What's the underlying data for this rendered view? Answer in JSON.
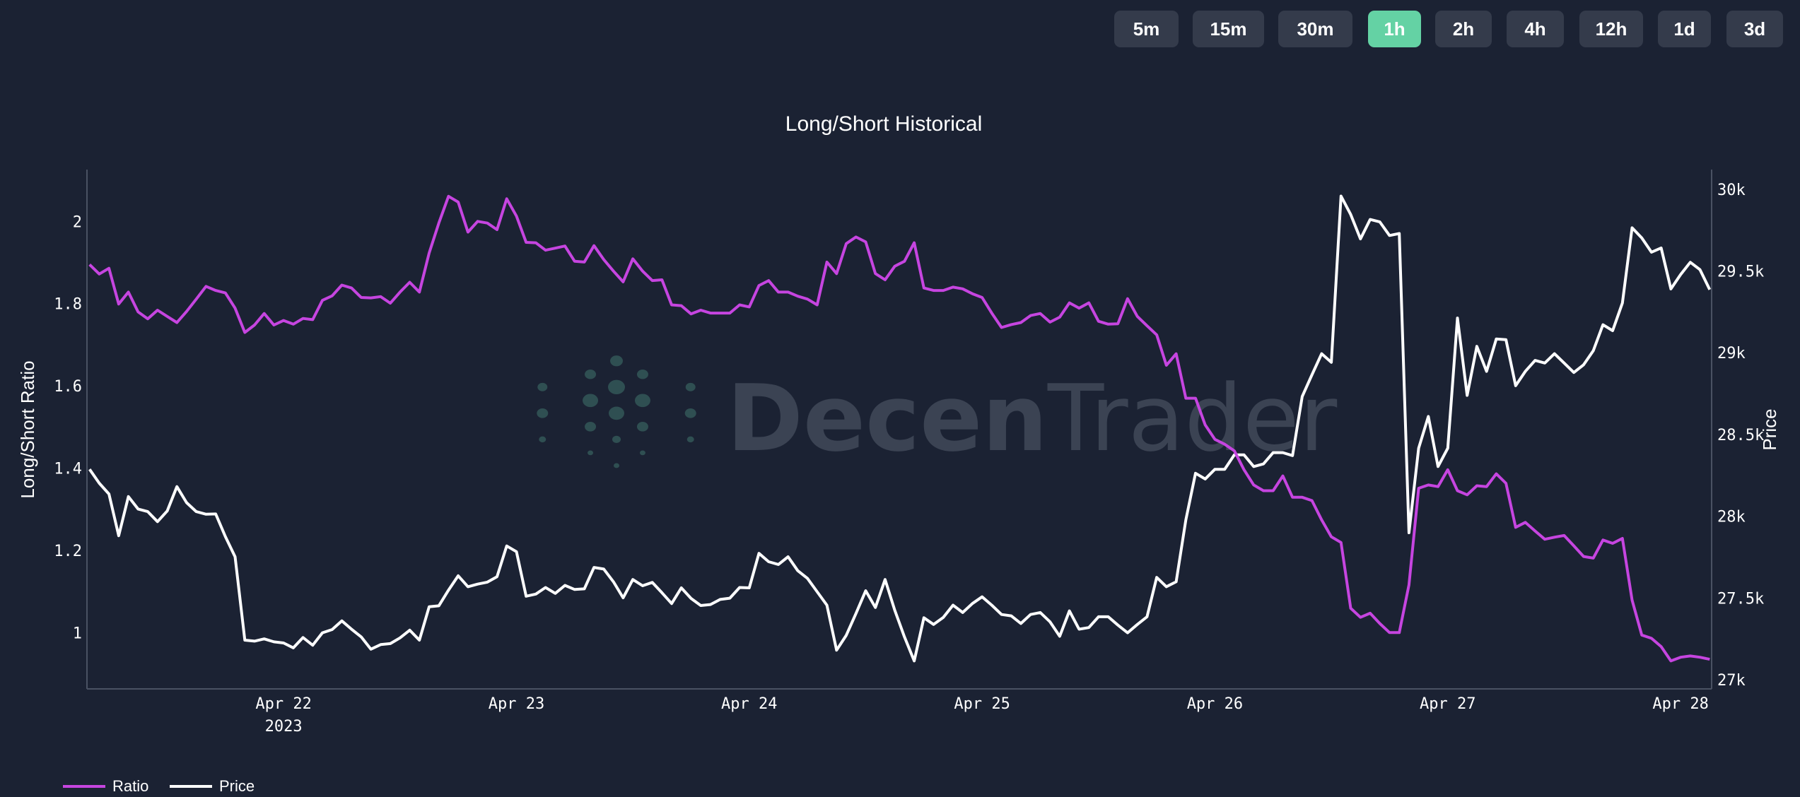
{
  "timeframes": {
    "options": [
      "5m",
      "15m",
      "30m",
      "1h",
      "2h",
      "4h",
      "12h",
      "1d",
      "3d"
    ],
    "selected": "1h"
  },
  "watermark": {
    "part1": "Decen",
    "part2": "Trader"
  },
  "colors": {
    "background": "#1b2233",
    "ratio": "#c645e0",
    "price": "#ffffff",
    "active_button": "#64d2a4",
    "button": "#343b4b"
  },
  "chart_data": {
    "type": "line",
    "title": "Long/Short Historical",
    "xlabel": "",
    "ylabel": "Long/Short Ratio",
    "y2label": "Price",
    "x_start": "2023-04-21T04:00",
    "interval_hours": 1,
    "x_ticks": [
      {
        "label": "Apr 22",
        "sub": "2023",
        "hour": 20
      },
      {
        "label": "Apr 23",
        "sub": "",
        "hour": 44
      },
      {
        "label": "Apr 24",
        "sub": "",
        "hour": 68
      },
      {
        "label": "Apr 25",
        "sub": "",
        "hour": 92
      },
      {
        "label": "Apr 26",
        "sub": "",
        "hour": 116
      },
      {
        "label": "Apr 27",
        "sub": "",
        "hour": 140
      },
      {
        "label": "Apr 28",
        "sub": "",
        "hour": 164
      }
    ],
    "xlim_hours": [
      -0.27,
      167.2
    ],
    "y_ticks": [
      "1",
      "1.2",
      "1.4",
      "1.6",
      "1.8",
      "2"
    ],
    "ylim": [
      0.863,
      2.126
    ],
    "y2_ticks": [
      "27k",
      "27.5k",
      "28k",
      "28.5k",
      "29k",
      "29.5k",
      "30k"
    ],
    "y2lim": [
      26944,
      30120
    ],
    "grid": false,
    "legend_position": "bottom-left",
    "series": [
      {
        "name": "Ratio",
        "axis": "left",
        "color": "#c645e0",
        "values": [
          1.895,
          1.872,
          1.886,
          1.799,
          1.828,
          1.78,
          1.763,
          1.784,
          1.769,
          1.754,
          1.781,
          1.811,
          1.842,
          1.832,
          1.826,
          1.789,
          1.73,
          1.748,
          1.776,
          1.748,
          1.759,
          1.75,
          1.764,
          1.761,
          1.808,
          1.819,
          1.845,
          1.838,
          1.815,
          1.814,
          1.817,
          1.801,
          1.828,
          1.852,
          1.828,
          1.923,
          1.996,
          2.061,
          2.047,
          1.974,
          2.0,
          1.996,
          1.98,
          2.055,
          2.013,
          1.949,
          1.948,
          1.93,
          1.935,
          1.94,
          1.903,
          1.901,
          1.941,
          1.907,
          1.879,
          1.853,
          1.909,
          1.879,
          1.856,
          1.858,
          1.797,
          1.795,
          1.775,
          1.784,
          1.777,
          1.777,
          1.777,
          1.797,
          1.792,
          1.844,
          1.856,
          1.828,
          1.828,
          1.818,
          1.811,
          1.797,
          1.901,
          1.873,
          1.946,
          1.962,
          1.95,
          1.873,
          1.858,
          1.891,
          1.903,
          1.948,
          1.838,
          1.832,
          1.832,
          1.84,
          1.836,
          1.824,
          1.815,
          1.777,
          1.742,
          1.749,
          1.754,
          1.771,
          1.776,
          1.755,
          1.767,
          1.802,
          1.789,
          1.802,
          1.757,
          1.75,
          1.751,
          1.812,
          1.769,
          1.746,
          1.724,
          1.65,
          1.678,
          1.57,
          1.57,
          1.505,
          1.47,
          1.458,
          1.442,
          1.396,
          1.359,
          1.345,
          1.345,
          1.381,
          1.329,
          1.329,
          1.321,
          1.274,
          1.233,
          1.219,
          1.059,
          1.037,
          1.047,
          1.022,
          1.0,
          1.0,
          1.116,
          1.351,
          1.359,
          1.355,
          1.396,
          1.345,
          1.335,
          1.357,
          1.355,
          1.386,
          1.363,
          1.256,
          1.268,
          1.247,
          1.227,
          1.232,
          1.236,
          1.211,
          1.185,
          1.181,
          1.225,
          1.217,
          1.229,
          1.079,
          0.994,
          0.986,
          0.966,
          0.931,
          0.94,
          0.943,
          0.94,
          0.935
        ]
      },
      {
        "name": "Price",
        "axis": "right",
        "color": "#ffffff",
        "values": [
          28287,
          28202,
          28136,
          27881,
          28120,
          28044,
          28028,
          27967,
          28032,
          28181,
          28083,
          28028,
          28012,
          28014,
          27875,
          27752,
          27242,
          27236,
          27250,
          27232,
          27225,
          27195,
          27258,
          27211,
          27287,
          27307,
          27360,
          27309,
          27262,
          27187,
          27215,
          27221,
          27256,
          27303,
          27242,
          27446,
          27452,
          27548,
          27636,
          27569,
          27585,
          27597,
          27630,
          27818,
          27783,
          27511,
          27524,
          27564,
          27528,
          27577,
          27552,
          27556,
          27687,
          27677,
          27599,
          27501,
          27613,
          27575,
          27595,
          27532,
          27466,
          27562,
          27497,
          27454,
          27460,
          27491,
          27499,
          27564,
          27562,
          27773,
          27722,
          27705,
          27752,
          27667,
          27620,
          27538,
          27456,
          27181,
          27272,
          27405,
          27544,
          27442,
          27613,
          27425,
          27262,
          27115,
          27379,
          27338,
          27381,
          27456,
          27411,
          27466,
          27507,
          27456,
          27399,
          27391,
          27344,
          27399,
          27411,
          27354,
          27266,
          27421,
          27309,
          27319,
          27385,
          27385,
          27334,
          27287,
          27338,
          27385,
          27626,
          27569,
          27599,
          27977,
          28263,
          28228,
          28287,
          28287,
          28375,
          28375,
          28304,
          28320,
          28389,
          28389,
          28371,
          28732,
          28865,
          28994,
          28941,
          29958,
          29845,
          29696,
          29815,
          29800,
          29717,
          29729,
          27899,
          28416,
          28610,
          28304,
          28416,
          29212,
          28739,
          29039,
          28886,
          29084,
          29080,
          28798,
          28886,
          28953,
          28937,
          28994,
          28937,
          28879,
          28926,
          29012,
          29171,
          29135,
          29304,
          29764,
          29702,
          29615,
          29641,
          29390,
          29478,
          29553,
          29508,
          29386
        ]
      }
    ]
  }
}
